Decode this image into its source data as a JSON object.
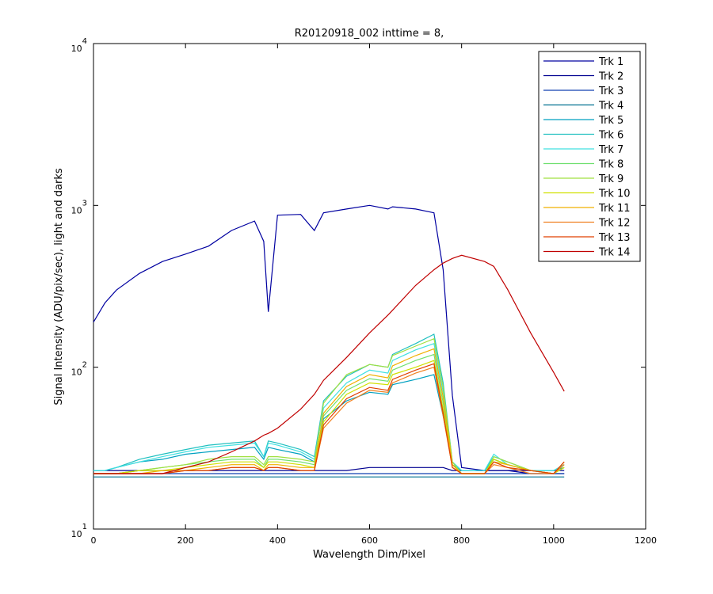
{
  "chart_data": {
    "type": "line",
    "title": "R20120918_002 inttime = 8,",
    "xlabel": "Wavelength Dim/Pixel",
    "ylabel": "Signal Intensity (ADU/pix/sec), light and darks",
    "xlim": [
      0,
      1200
    ],
    "xticks": [
      0,
      200,
      400,
      600,
      800,
      1000,
      1200
    ],
    "ylim": [
      10,
      10000
    ],
    "ylog": true,
    "yticks": [
      {
        "value": 10,
        "label": "10^1"
      },
      {
        "value": 100,
        "label": "10^2"
      },
      {
        "value": 1000,
        "label": "10^3"
      },
      {
        "value": 10000,
        "label": "10^4"
      }
    ],
    "legend": "upper right",
    "x": [
      0,
      25,
      50,
      100,
      150,
      200,
      250,
      300,
      350,
      370,
      380,
      400,
      450,
      480,
      500,
      550,
      600,
      640,
      650,
      700,
      740,
      760,
      780,
      800,
      850,
      870,
      900,
      950,
      1000,
      1023
    ],
    "series": [
      {
        "name": "Trk 1",
        "color": "#0000a0",
        "values": [
          190,
          250,
          300,
          380,
          450,
          500,
          560,
          700,
          800,
          600,
          220,
          870,
          880,
          700,
          900,
          950,
          1000,
          950,
          980,
          950,
          900,
          400,
          67,
          24,
          23,
          23,
          23,
          22,
          22,
          22
        ]
      },
      {
        "name": "Trk 2",
        "color": "#000090",
        "values": [
          23,
          23,
          23,
          23,
          23,
          23,
          23,
          23,
          23,
          23,
          23,
          23,
          23,
          23,
          23,
          23,
          24,
          24,
          24,
          24,
          24,
          24,
          23,
          23,
          23,
          23,
          23,
          23,
          23,
          23
        ]
      },
      {
        "name": "Trk 3",
        "color": "#1040b0",
        "values": [
          22,
          22,
          22,
          22,
          22,
          22,
          22,
          22,
          22,
          22,
          22,
          22,
          22,
          22,
          22,
          22,
          22,
          22,
          22,
          22,
          22,
          22,
          22,
          22,
          22,
          22,
          22,
          22,
          22,
          22
        ]
      },
      {
        "name": "Trk 4",
        "color": "#007090",
        "values": [
          21,
          21,
          21,
          21,
          21,
          21,
          21,
          21,
          21,
          21,
          21,
          21,
          21,
          21,
          21,
          21,
          21,
          21,
          21,
          21,
          21,
          21,
          21,
          21,
          21,
          21,
          21,
          21,
          21,
          21
        ]
      },
      {
        "name": "Trk 5",
        "color": "#00a0c0",
        "values": [
          23,
          23,
          24,
          26,
          27,
          29,
          30,
          31,
          32,
          27,
          32,
          31,
          29,
          26,
          48,
          62,
          70,
          68,
          78,
          84,
          90,
          50,
          25,
          23,
          23,
          27,
          25,
          23,
          23,
          24
        ]
      },
      {
        "name": "Trk 6",
        "color": "#20c0c0",
        "values": [
          23,
          23,
          24,
          27,
          29,
          31,
          33,
          34,
          35,
          28,
          35,
          34,
          31,
          28,
          62,
          88,
          104,
          100,
          120,
          140,
          160,
          80,
          26,
          23,
          23,
          28,
          26,
          23,
          23,
          25
        ]
      },
      {
        "name": "Trk 7",
        "color": "#40e0e0",
        "values": [
          23,
          23,
          24,
          26,
          28,
          30,
          32,
          33,
          34,
          28,
          34,
          33,
          30,
          27,
          56,
          80,
          96,
          92,
          110,
          128,
          140,
          70,
          26,
          23,
          23,
          29,
          25,
          23,
          23,
          25
        ]
      },
      {
        "name": "Trk 8",
        "color": "#70e070",
        "values": [
          22,
          22,
          22,
          23,
          24,
          25,
          26,
          27,
          27,
          24,
          27,
          27,
          26,
          25,
          50,
          72,
          85,
          82,
          96,
          110,
          120,
          60,
          25,
          22,
          22,
          27,
          25,
          23,
          22,
          24
        ]
      },
      {
        "name": "Trk 9",
        "color": "#a0e040",
        "values": [
          22,
          22,
          22,
          23,
          24,
          25,
          27,
          28,
          28,
          25,
          28,
          28,
          27,
          26,
          60,
          90,
          104,
          100,
          118,
          135,
          150,
          75,
          26,
          22,
          22,
          28,
          26,
          23,
          22,
          25
        ]
      },
      {
        "name": "Trk 10",
        "color": "#d0e000",
        "values": [
          22,
          22,
          22,
          23,
          23,
          24,
          25,
          26,
          26,
          24,
          26,
          26,
          25,
          24,
          46,
          68,
          80,
          78,
          90,
          100,
          110,
          55,
          25,
          22,
          22,
          27,
          25,
          23,
          22,
          24
        ]
      },
      {
        "name": "Trk 11",
        "color": "#f0b000",
        "values": [
          22,
          22,
          22,
          22,
          23,
          23,
          24,
          25,
          25,
          23,
          25,
          25,
          24,
          24,
          52,
          76,
          90,
          86,
          102,
          118,
          130,
          65,
          25,
          22,
          22,
          26,
          25,
          23,
          22,
          26
        ]
      },
      {
        "name": "Trk 12",
        "color": "#f08020",
        "values": [
          22,
          22,
          22,
          22,
          22,
          23,
          23,
          24,
          24,
          23,
          24,
          24,
          23,
          23,
          42,
          60,
          72,
          70,
          80,
          92,
          100,
          50,
          24,
          22,
          22,
          25,
          24,
          22,
          22,
          25
        ]
      },
      {
        "name": "Trk 13",
        "color": "#e04000",
        "values": [
          22,
          22,
          22,
          22,
          22,
          23,
          23,
          24,
          24,
          23,
          24,
          24,
          23,
          23,
          44,
          64,
          75,
          72,
          84,
          96,
          105,
          52,
          24,
          22,
          22,
          26,
          24,
          23,
          22,
          26
        ]
      },
      {
        "name": "Trk 14",
        "color": "#c00000",
        "values": [
          22,
          22,
          22,
          22,
          22,
          24,
          26,
          30,
          35,
          38,
          39,
          42,
          55,
          68,
          83,
          115,
          163,
          210,
          225,
          320,
          400,
          440,
          470,
          492,
          450,
          420,
          302,
          163,
          93,
          71
        ]
      }
    ]
  }
}
